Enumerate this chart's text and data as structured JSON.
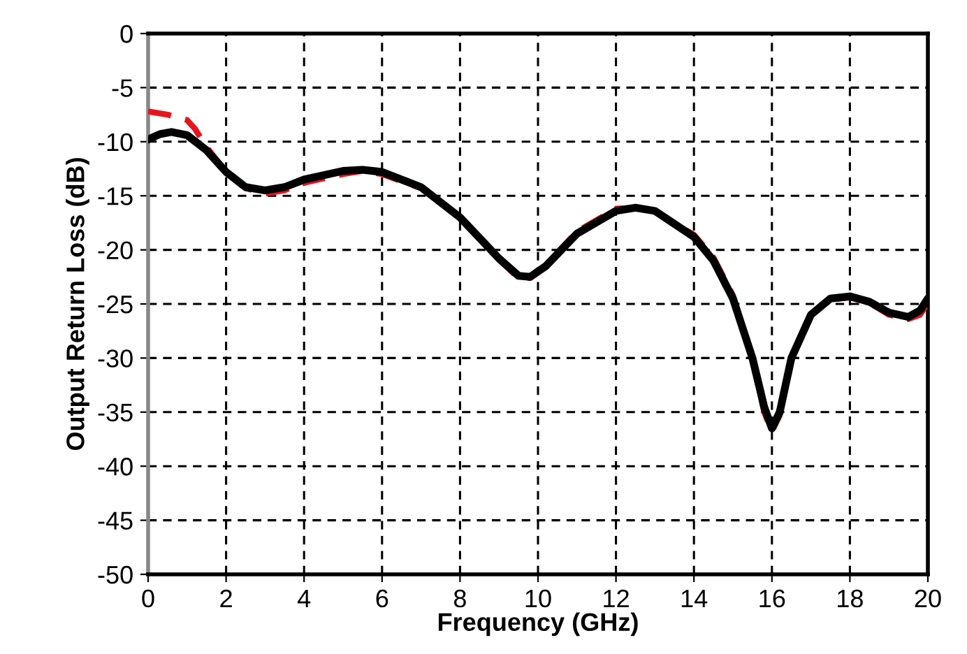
{
  "chart_data": {
    "type": "line",
    "xlabel": "Frequency (GHz)",
    "ylabel": "Output Return Loss (dB)",
    "xlim": [
      0,
      20
    ],
    "ylim": [
      -50,
      0
    ],
    "xticks": [
      0,
      2,
      4,
      6,
      8,
      10,
      12,
      14,
      16,
      18,
      20
    ],
    "yticks": [
      -50,
      -45,
      -40,
      -35,
      -30,
      -25,
      -20,
      -15,
      -10,
      -5,
      0
    ],
    "grid": true,
    "legend": false,
    "marker": "none",
    "series": [
      {
        "color": "#e8141c",
        "line_style": "dashed",
        "x": [
          0,
          0.5,
          1,
          1.2,
          1.5,
          2,
          2.5,
          3,
          3.5,
          4,
          5,
          5.5,
          6,
          7,
          8,
          9,
          9.5,
          9.8,
          10.2,
          11,
          12,
          12.5,
          13,
          14,
          14.5,
          15,
          15.5,
          15.8,
          16,
          16.2,
          16.5,
          17,
          17.5,
          18,
          18.5,
          19,
          19.5,
          19.8,
          20
        ],
        "values": [
          -7.2,
          -7.5,
          -8.0,
          -8.8,
          -10.5,
          -12.8,
          -14.3,
          -14.8,
          -14.5,
          -13.8,
          -13.0,
          -12.7,
          -13.0,
          -14.3,
          -17,
          -20.9,
          -22.6,
          -22.6,
          -21.4,
          -18.3,
          -16.2,
          -16.1,
          -16.5,
          -18.6,
          -20.7,
          -24.2,
          -30,
          -35,
          -36.8,
          -35.3,
          -30,
          -26,
          -24.6,
          -24.4,
          -24.9,
          -26,
          -26.4,
          -26,
          -24.9
        ]
      },
      {
        "color": "#000000",
        "line_style": "solid",
        "x": [
          0,
          0.3,
          0.6,
          1,
          1.5,
          2,
          2.5,
          3,
          3.5,
          4,
          5,
          5.5,
          6,
          7,
          8,
          9,
          9.5,
          9.8,
          10.2,
          11,
          12,
          12.5,
          13,
          14,
          14.5,
          15,
          15.5,
          15.8,
          16,
          16.2,
          16.5,
          17,
          17.5,
          18,
          18.5,
          19,
          19.5,
          19.8,
          20
        ],
        "values": [
          -9.8,
          -9.3,
          -9.1,
          -9.4,
          -10.8,
          -12.8,
          -14.2,
          -14.5,
          -14.2,
          -13.5,
          -12.7,
          -12.6,
          -12.8,
          -14.2,
          -17,
          -20.8,
          -22.4,
          -22.5,
          -21.5,
          -18.5,
          -16.4,
          -16.1,
          -16.4,
          -18.8,
          -21,
          -24.5,
          -30,
          -34.5,
          -36.5,
          -35,
          -30,
          -26,
          -24.5,
          -24.3,
          -24.8,
          -25.8,
          -26.2,
          -25.6,
          -24.5
        ]
      }
    ]
  }
}
